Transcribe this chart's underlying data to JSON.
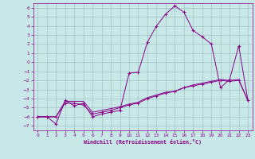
{
  "xlabel": "Windchill (Refroidissement éolien,°C)",
  "xlim": [
    -0.5,
    23.5
  ],
  "ylim": [
    -7.5,
    6.5
  ],
  "yticks": [
    -7,
    -6,
    -5,
    -4,
    -3,
    -2,
    -1,
    0,
    1,
    2,
    3,
    4,
    5,
    6
  ],
  "xticks": [
    0,
    1,
    2,
    3,
    4,
    5,
    6,
    7,
    8,
    9,
    10,
    11,
    12,
    13,
    14,
    15,
    16,
    17,
    18,
    19,
    20,
    21,
    22,
    23
  ],
  "background_color": "#c8e8e8",
  "line_color": "#880088",
  "grid_color": "#99bbbb",
  "line1_x": [
    0,
    1,
    2,
    3,
    4,
    5,
    6,
    7,
    8,
    9,
    10,
    11,
    12,
    13,
    14,
    15,
    16,
    17,
    18,
    19,
    20,
    21,
    22,
    23
  ],
  "line1_y": [
    -6.0,
    -6.0,
    -6.8,
    -4.2,
    -4.8,
    -4.5,
    -6.0,
    -5.7,
    -5.5,
    -5.3,
    -1.2,
    -1.1,
    2.2,
    4.0,
    5.3,
    6.2,
    5.5,
    3.5,
    2.8,
    2.0,
    -2.8,
    -1.9,
    1.8,
    -4.2
  ],
  "line2_x": [
    0,
    1,
    2,
    3,
    4,
    5,
    6,
    7,
    8,
    9,
    10,
    11,
    12,
    13,
    14,
    15,
    16,
    17,
    18,
    19,
    20,
    21,
    22,
    23
  ],
  "line2_y": [
    -6.0,
    -6.0,
    -6.0,
    -4.5,
    -4.5,
    -4.7,
    -5.7,
    -5.5,
    -5.3,
    -5.0,
    -4.7,
    -4.5,
    -4.0,
    -3.7,
    -3.4,
    -3.2,
    -2.8,
    -2.6,
    -2.4,
    -2.2,
    -2.0,
    -2.1,
    -2.0,
    -4.2
  ],
  "line3_x": [
    0,
    1,
    2,
    3,
    4,
    5,
    6,
    7,
    8,
    9,
    10,
    11,
    12,
    13,
    14,
    15,
    16,
    17,
    18,
    19,
    20,
    21,
    22,
    23
  ],
  "line3_y": [
    -6.0,
    -6.0,
    -6.0,
    -4.3,
    -4.3,
    -4.3,
    -5.5,
    -5.3,
    -5.1,
    -4.9,
    -4.6,
    -4.4,
    -3.9,
    -3.6,
    -3.3,
    -3.2,
    -2.8,
    -2.5,
    -2.3,
    -2.1,
    -1.9,
    -2.0,
    -1.9,
    -4.2
  ]
}
